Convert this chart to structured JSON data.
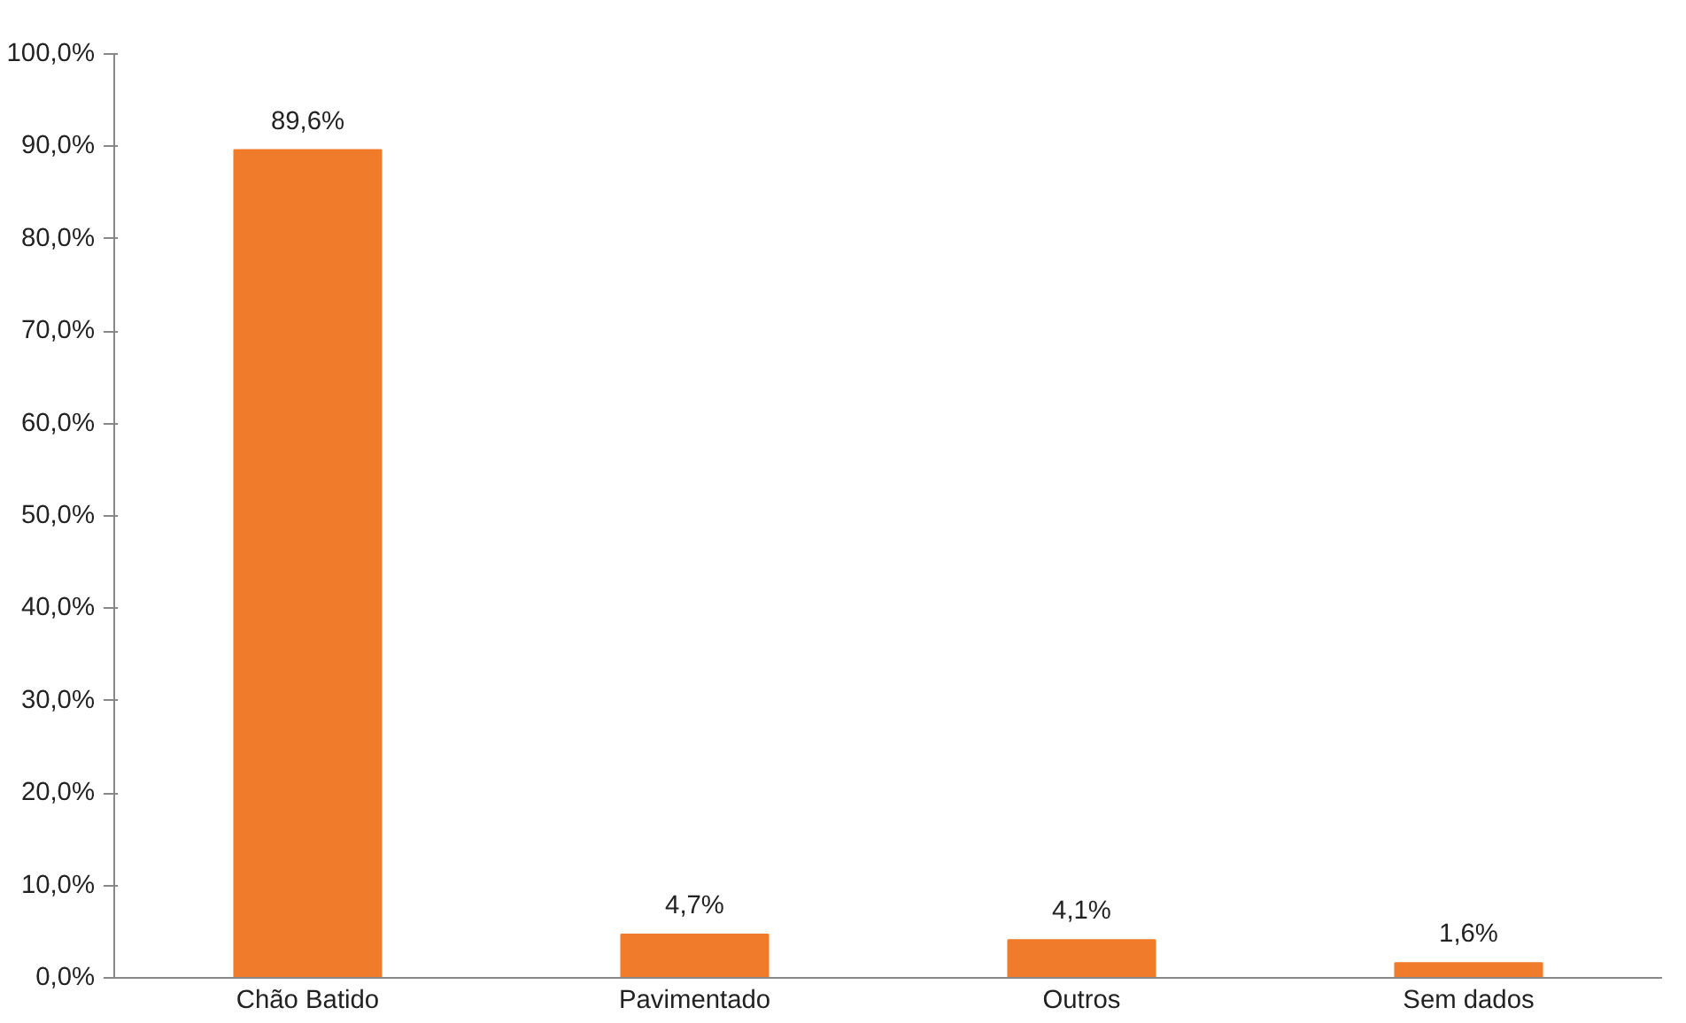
{
  "chart_data": {
    "type": "bar",
    "categories": [
      "Chão Batido",
      "Pavimentado",
      "Outros",
      "Sem dados"
    ],
    "values": [
      89.6,
      4.7,
      4.1,
      1.6
    ],
    "color": "#f07b2a",
    "value_labels": [
      "89,6%",
      "4,7%",
      "4,1%",
      "1,6%"
    ],
    "ylim": [
      0,
      100
    ],
    "yticks": [
      {
        "value": 0,
        "label": "0,0%"
      },
      {
        "value": 10,
        "label": "10,0%"
      },
      {
        "value": 20,
        "label": "20,0%"
      },
      {
        "value": 30,
        "label": "30,0%"
      },
      {
        "value": 40,
        "label": "40,0%"
      },
      {
        "value": 50,
        "label": "50,0%"
      },
      {
        "value": 60,
        "label": "60,0%"
      },
      {
        "value": 70,
        "label": "70,0%"
      },
      {
        "value": 80,
        "label": "80,0%"
      },
      {
        "value": 90,
        "label": "90,0%"
      },
      {
        "value": 100,
        "label": "100,0%"
      }
    ],
    "grid": false
  }
}
